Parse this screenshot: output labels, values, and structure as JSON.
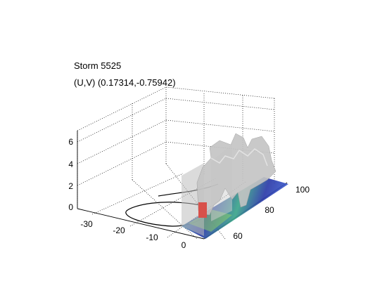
{
  "chart_data": {
    "type": "3d-surface",
    "title": "Storm 5525",
    "subtitle": "(U,V) (0.17314,-0.75942)",
    "xlabel": "",
    "ylabel": "",
    "zlabel": "",
    "x_ticks": [
      "-30",
      "-20",
      "-10",
      "0"
    ],
    "y_ticks": [
      "60",
      "80",
      "100"
    ],
    "z_ticks": [
      "0",
      "2",
      "4",
      "6"
    ],
    "xlim": [
      -35,
      0
    ],
    "ylim": [
      50,
      100
    ],
    "zlim": [
      0,
      7
    ],
    "grid": true,
    "colors": {
      "iso_surface": "#c8c8c8",
      "slice_dark": "#2b3aa8",
      "slice_mid": "#2fa0a0",
      "slice_light": "#8ccf6a",
      "core": "#d8504a",
      "track": "#000000"
    },
    "track_path": [
      {
        "x": -5,
        "y": 62,
        "z": 0
      },
      {
        "x": -18,
        "y": 58,
        "z": 0
      },
      {
        "x": -28,
        "y": 60,
        "z": 0
      },
      {
        "x": -30,
        "y": 66,
        "z": 0
      },
      {
        "x": -22,
        "y": 76,
        "z": 0
      },
      {
        "x": -10,
        "y": 82,
        "z": 0
      },
      {
        "x": -2,
        "y": 86,
        "z": 0
      }
    ]
  }
}
